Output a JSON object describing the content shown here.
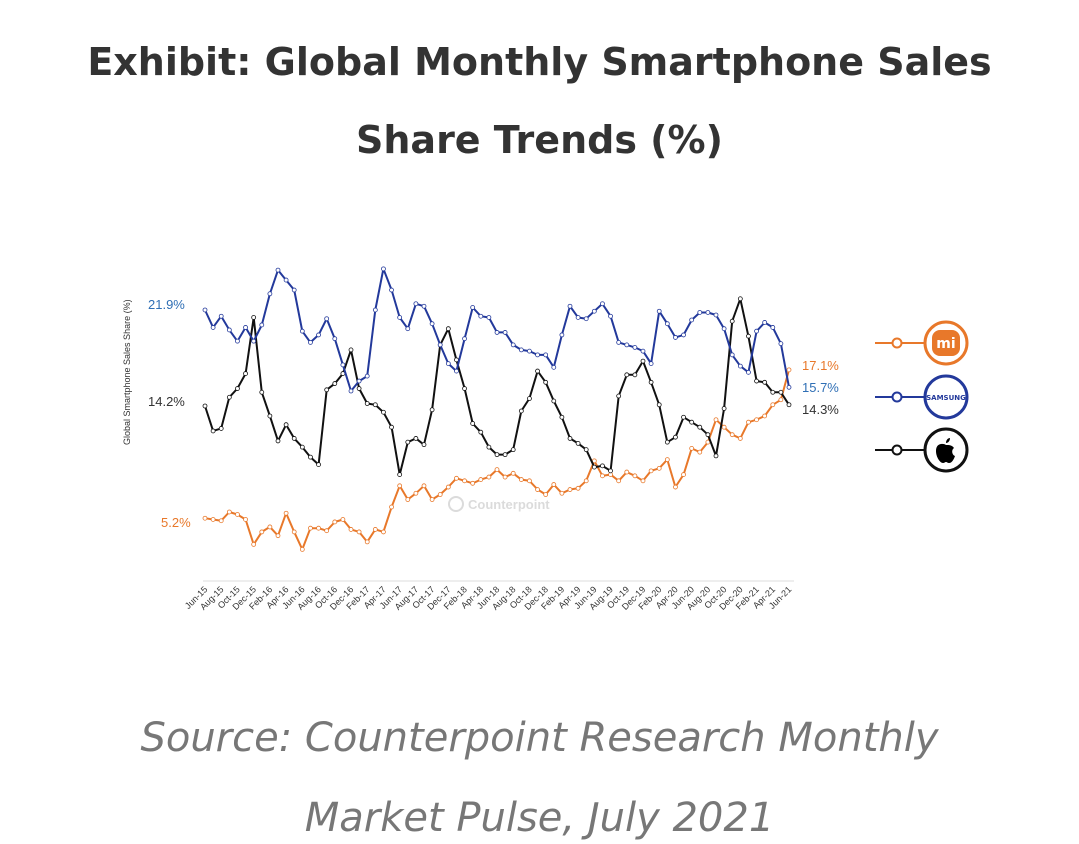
{
  "title_line1": "Exhibit: Global Monthly Smartphone Sales",
  "title_line2": "Share Trends (%)",
  "source_line1": "Source: Counterpoint Research Monthly",
  "source_line2": "Market Pulse, July 2021",
  "watermark": "Counterpoint",
  "chart_data": {
    "type": "line",
    "title": "Exhibit: Global Monthly Smartphone Sales Share Trends (%)",
    "ylabel": "Global Smartphone Sales Share (%)",
    "xlabel": "",
    "grid": false,
    "legend": "right",
    "x": [
      "Jun-15",
      "Jul-15",
      "Aug-15",
      "Sep-15",
      "Oct-15",
      "Nov-15",
      "Dec-15",
      "Jan-16",
      "Feb-16",
      "Mar-16",
      "Apr-16",
      "May-16",
      "Jun-16",
      "Jul-16",
      "Aug-16",
      "Sep-16",
      "Oct-16",
      "Nov-16",
      "Dec-16",
      "Jan-17",
      "Feb-17",
      "Mar-17",
      "Apr-17",
      "May-17",
      "Jun-17",
      "Jul-17",
      "Aug-17",
      "Sep-17",
      "Oct-17",
      "Nov-17",
      "Dec-17",
      "Jan-18",
      "Feb-18",
      "Mar-18",
      "Apr-18",
      "May-18",
      "Jun-18",
      "Jul-18",
      "Aug-18",
      "Sep-18",
      "Oct-18",
      "Nov-18",
      "Dec-18",
      "Jan-19",
      "Feb-19",
      "Mar-19",
      "Apr-19",
      "May-19",
      "Jun-19",
      "Jul-19",
      "Aug-19",
      "Sep-19",
      "Oct-19",
      "Nov-19",
      "Dec-19",
      "Jan-20",
      "Feb-20",
      "Mar-20",
      "Apr-20",
      "May-20",
      "Jun-20",
      "Jul-20",
      "Aug-20",
      "Sep-20",
      "Oct-20",
      "Nov-20",
      "Dec-20",
      "Jan-21",
      "Feb-21",
      "Mar-21",
      "Apr-21",
      "May-21",
      "Jun-21"
    ],
    "tick_labels": [
      "Jun-15",
      "Aug-15",
      "Oct-15",
      "Dec-15",
      "Feb-16",
      "Apr-16",
      "Jun-16",
      "Aug-16",
      "Oct-16",
      "Dec-16",
      "Feb-17",
      "Apr-17",
      "Jun-17",
      "Aug-17",
      "Oct-17",
      "Dec-17",
      "Feb-18",
      "Apr-18",
      "Jun-18",
      "Aug-18",
      "Oct-18",
      "Dec-18",
      "Feb-19",
      "Apr-19",
      "Jun-19",
      "Aug-19",
      "Oct-19",
      "Dec-19",
      "Feb-20",
      "Apr-20",
      "Jun-20",
      "Aug-20",
      "Oct-20",
      "Dec-20",
      "Feb-21",
      "Apr-21",
      "Jun-21"
    ],
    "series": [
      {
        "name": "Xiaomi",
        "logo_text": "mi",
        "color": "#e8782a",
        "start_label": "5.2%",
        "end_label": "17.1%",
        "values": [
          5.2,
          5.1,
          5.0,
          5.7,
          5.5,
          5.1,
          3.1,
          4.1,
          4.5,
          3.8,
          5.6,
          4.1,
          2.7,
          4.4,
          4.4,
          4.2,
          4.9,
          5.1,
          4.3,
          4.1,
          3.3,
          4.3,
          4.1,
          6.1,
          7.8,
          6.7,
          7.2,
          7.8,
          6.7,
          7.1,
          7.7,
          8.4,
          8.2,
          8.0,
          8.3,
          8.5,
          9.1,
          8.5,
          8.8,
          8.3,
          8.2,
          7.5,
          7.1,
          7.9,
          7.2,
          7.5,
          7.6,
          8.2,
          9.8,
          8.6,
          8.7,
          8.2,
          8.9,
          8.6,
          8.2,
          9.0,
          9.2,
          9.9,
          7.7,
          8.7,
          10.8,
          10.5,
          11.3,
          13.1,
          12.5,
          11.9,
          11.6,
          12.9,
          13.1,
          13.4,
          14.3,
          14.7,
          17.1
        ]
      },
      {
        "name": "Samsung",
        "logo_text": "SAMSUNG",
        "color": "#23399b",
        "label_color": "#2f6fb5",
        "start_label": "21.9%",
        "end_label": "15.7%",
        "values": [
          21.9,
          20.5,
          21.4,
          20.3,
          19.4,
          20.5,
          19.4,
          20.7,
          23.2,
          25.1,
          24.3,
          23.5,
          20.2,
          19.3,
          19.9,
          21.2,
          19.6,
          17.5,
          15.4,
          16.2,
          16.6,
          21.9,
          25.2,
          23.5,
          21.3,
          20.4,
          22.4,
          22.2,
          20.8,
          19.1,
          17.6,
          17.0,
          19.6,
          22.1,
          21.4,
          21.3,
          20.1,
          20.1,
          19.1,
          18.7,
          18.6,
          18.3,
          18.3,
          17.3,
          19.9,
          22.2,
          21.3,
          21.2,
          21.8,
          22.4,
          21.4,
          19.3,
          19.1,
          18.9,
          18.6,
          17.6,
          21.8,
          20.8,
          19.7,
          19.9,
          21.1,
          21.7,
          21.7,
          21.5,
          20.4,
          18.3,
          17.4,
          16.9,
          20.2,
          20.9,
          20.5,
          19.2,
          15.7
        ]
      },
      {
        "name": "Apple",
        "logo_text": "",
        "color": "#111111",
        "label_color": "#333333",
        "start_label": "14.2%",
        "end_label": "14.3%",
        "values": [
          14.2,
          12.2,
          12.4,
          14.9,
          15.6,
          16.8,
          21.3,
          15.3,
          13.4,
          11.4,
          12.7,
          11.6,
          10.9,
          10.1,
          9.5,
          15.5,
          16.0,
          16.8,
          18.7,
          15.6,
          14.4,
          14.3,
          13.7,
          12.5,
          8.7,
          11.3,
          11.6,
          11.1,
          13.9,
          19.1,
          20.4,
          17.9,
          15.6,
          12.8,
          12.1,
          10.9,
          10.3,
          10.3,
          10.7,
          13.8,
          14.8,
          17.0,
          16.1,
          14.6,
          13.3,
          11.6,
          11.2,
          10.7,
          9.3,
          9.4,
          9.0,
          15.0,
          16.7,
          16.7,
          17.8,
          16.1,
          14.3,
          11.3,
          11.7,
          13.3,
          12.9,
          12.5,
          11.9,
          10.2,
          14.0,
          21.0,
          22.8,
          19.8,
          16.2,
          16.1,
          15.3,
          15.3,
          14.3
        ]
      }
    ]
  }
}
